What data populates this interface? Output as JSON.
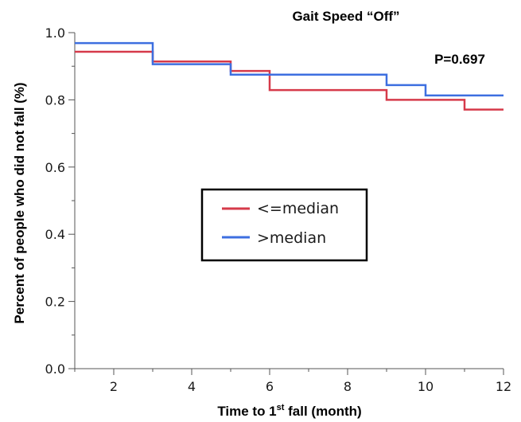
{
  "chart_data": {
    "type": "line",
    "subtype": "step",
    "title": "Gait Speed “Off”",
    "xlabel": "Time to 1",
    "xlabel_superscript": "st",
    "xlabel_suffix": " fall (month)",
    "ylabel": "Percent of people who did not fall (%)",
    "xlim": [
      1,
      12
    ],
    "ylim": [
      0.0,
      1.0
    ],
    "xticks": [
      2,
      4,
      6,
      8,
      10,
      12
    ],
    "yticks": [
      0.0,
      0.2,
      0.4,
      0.6,
      0.8,
      1.0
    ],
    "yticks_labels": [
      "0.0",
      "0.2",
      "0.4",
      "0.6",
      "0.8",
      "1.0"
    ],
    "grid": false,
    "legend_position": "center",
    "annotation": "P=0.697",
    "series": [
      {
        "name": "<=median",
        "color": "#d63a4a",
        "x": [
          1,
          3,
          5,
          6,
          9,
          11,
          12
        ],
        "y": [
          0.943,
          0.914,
          0.886,
          0.829,
          0.8,
          0.771,
          0.771
        ]
      },
      {
        "name": ">median",
        "color": "#3d6fe0",
        "x": [
          1,
          3,
          5,
          9,
          10,
          12
        ],
        "y": [
          0.969,
          0.906,
          0.875,
          0.844,
          0.813,
          0.813
        ]
      }
    ]
  }
}
